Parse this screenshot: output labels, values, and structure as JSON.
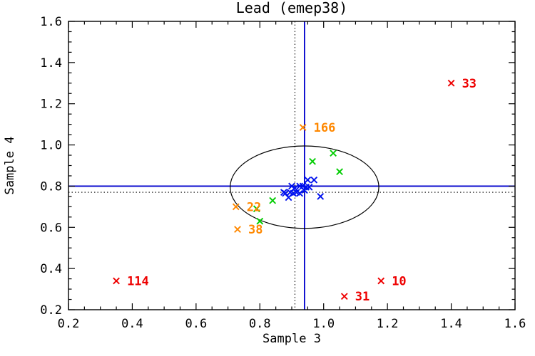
{
  "window": {
    "background": "#ffffff"
  },
  "chart_data": {
    "type": "scatter",
    "title": "Lead (emep38)",
    "xlabel": "Sample 3",
    "ylabel": "Sample 4",
    "xlim": [
      0.2,
      1.6
    ],
    "ylim": [
      0.2,
      1.6
    ],
    "x_tick_labels": [
      "0.2",
      "0.4",
      "0.6",
      "0.8",
      "1.0",
      "1.2",
      "1.4",
      "1.6"
    ],
    "y_tick_labels": [
      "0.2",
      "0.4",
      "0.6",
      "0.8",
      "1.0",
      "1.2",
      "1.4",
      "1.6"
    ],
    "major_tick_step": 0.2,
    "minor_tick_step": 0.05,
    "grid": false,
    "marker": "x",
    "colors": {
      "frame": "#000000",
      "crosshair_solid": "#0000cc",
      "crosshair_dotted": "#000000",
      "envelope": "#000000",
      "series_blue": "#0011ee",
      "series_green": "#00cc00",
      "series_orange": "#ff8800",
      "series_red": "#ee0000"
    },
    "series": [
      {
        "name": "stations-blue",
        "color": "#0011ee",
        "points": [
          {
            "x": 0.95,
            "y": 0.83
          },
          {
            "x": 0.97,
            "y": 0.83
          },
          {
            "x": 0.955,
            "y": 0.795
          },
          {
            "x": 0.9,
            "y": 0.8
          },
          {
            "x": 0.91,
            "y": 0.79
          },
          {
            "x": 0.925,
            "y": 0.8
          },
          {
            "x": 0.935,
            "y": 0.8
          },
          {
            "x": 0.945,
            "y": 0.795
          },
          {
            "x": 0.875,
            "y": 0.77
          },
          {
            "x": 0.88,
            "y": 0.765
          },
          {
            "x": 0.895,
            "y": 0.77
          },
          {
            "x": 0.905,
            "y": 0.765
          },
          {
            "x": 0.915,
            "y": 0.77
          },
          {
            "x": 0.925,
            "y": 0.765
          },
          {
            "x": 0.89,
            "y": 0.745
          },
          {
            "x": 0.94,
            "y": 0.78
          },
          {
            "x": 0.99,
            "y": 0.75
          }
        ]
      },
      {
        "name": "stations-green",
        "color": "#00cc00",
        "points": [
          {
            "x": 1.03,
            "y": 0.96
          },
          {
            "x": 0.965,
            "y": 0.92
          },
          {
            "x": 1.05,
            "y": 0.87
          },
          {
            "x": 0.84,
            "y": 0.73
          },
          {
            "x": 0.79,
            "y": 0.69
          },
          {
            "x": 0.8,
            "y": 0.63
          }
        ]
      },
      {
        "name": "stations-orange-labeled",
        "color": "#ff8800",
        "points": [
          {
            "x": 0.935,
            "y": 1.085,
            "label": "166"
          },
          {
            "x": 0.725,
            "y": 0.7,
            "label": "22"
          },
          {
            "x": 0.73,
            "y": 0.59,
            "label": "38"
          }
        ]
      },
      {
        "name": "stations-red-labeled",
        "color": "#ee0000",
        "points": [
          {
            "x": 1.4,
            "y": 1.3,
            "label": "33"
          },
          {
            "x": 0.35,
            "y": 0.34,
            "label": "114"
          },
          {
            "x": 1.18,
            "y": 0.34,
            "label": "10"
          },
          {
            "x": 1.065,
            "y": 0.265,
            "label": "31"
          }
        ]
      }
    ],
    "reference_lines": [
      {
        "orientation": "horizontal",
        "value": 0.8,
        "style": "solid",
        "color": "#0000cc"
      },
      {
        "orientation": "vertical",
        "value": 0.94,
        "style": "solid",
        "color": "#0000cc"
      },
      {
        "orientation": "horizontal",
        "value": 0.77,
        "style": "dotted",
        "color": "#000000"
      },
      {
        "orientation": "vertical",
        "value": 0.91,
        "style": "dotted",
        "color": "#000000"
      }
    ],
    "ellipse": {
      "cx": 0.94,
      "cy": 0.795,
      "rx": 0.233,
      "ry": 0.2,
      "color": "#000000"
    }
  }
}
